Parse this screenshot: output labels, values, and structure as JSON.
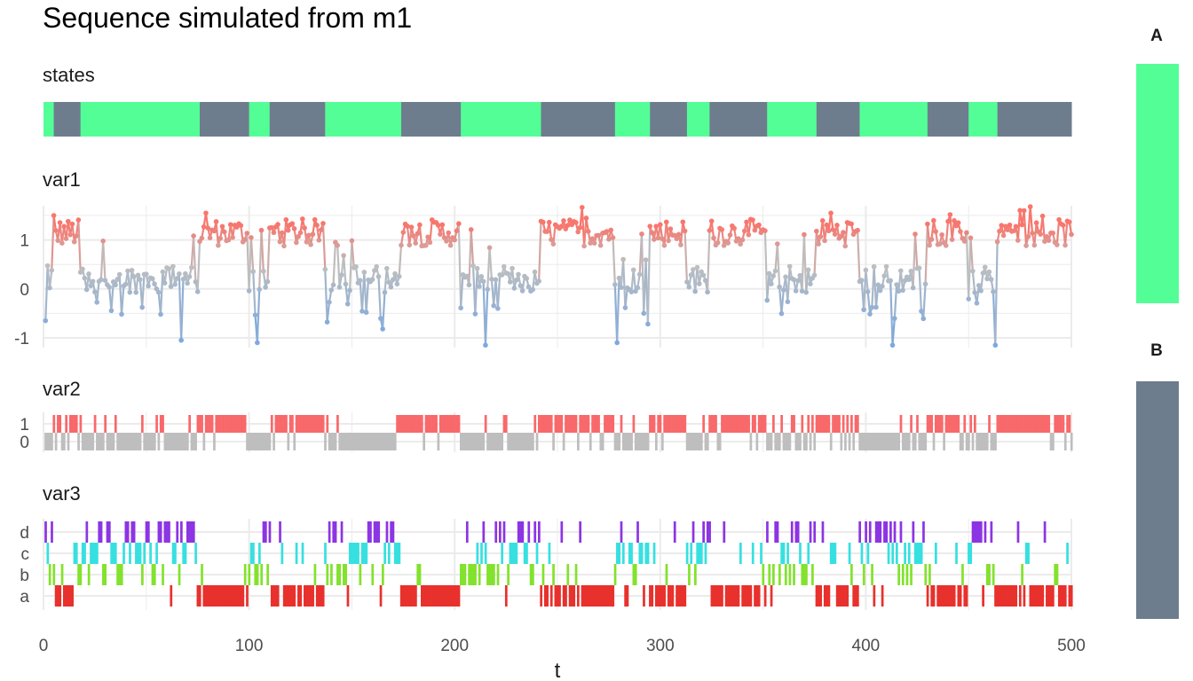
{
  "title": "Sequence simulated from m1",
  "xlabel": "t",
  "colors": {
    "A": "#54FE97",
    "B": "#6E7D8D",
    "var1_high": "#F8766D",
    "var1_low": "#7DA9DE",
    "var1_mid": "#BFBFBF",
    "var2_1": "#F8696B",
    "var2_0": "#BEBEBE",
    "var3_a": "#E8312D",
    "var3_b": "#83E22D",
    "var3_c": "#37E0E0",
    "var3_d": "#8C35E3",
    "grid": "#EBEBEB"
  },
  "chart_data": {
    "type": "multi-panel sequence",
    "xlim": [
      0,
      500
    ],
    "xticks": [
      0,
      100,
      200,
      300,
      400,
      500
    ],
    "legend": {
      "position": "right",
      "entries": [
        "A",
        "B"
      ]
    },
    "states": {
      "label": "states",
      "segments": [
        {
          "state": "A",
          "start": 0,
          "end": 5
        },
        {
          "state": "B",
          "start": 5,
          "end": 18
        },
        {
          "state": "A",
          "start": 18,
          "end": 76
        },
        {
          "state": "B",
          "start": 76,
          "end": 100
        },
        {
          "state": "A",
          "start": 100,
          "end": 110
        },
        {
          "state": "B",
          "start": 110,
          "end": 137
        },
        {
          "state": "A",
          "start": 137,
          "end": 174
        },
        {
          "state": "B",
          "start": 174,
          "end": 203
        },
        {
          "state": "A",
          "start": 203,
          "end": 242
        },
        {
          "state": "B",
          "start": 242,
          "end": 278
        },
        {
          "state": "A",
          "start": 278,
          "end": 295
        },
        {
          "state": "B",
          "start": 295,
          "end": 313
        },
        {
          "state": "A",
          "start": 313,
          "end": 324
        },
        {
          "state": "B",
          "start": 324,
          "end": 352
        },
        {
          "state": "A",
          "start": 352,
          "end": 376
        },
        {
          "state": "B",
          "start": 376,
          "end": 397
        },
        {
          "state": "A",
          "start": 397,
          "end": 430
        },
        {
          "state": "B",
          "start": 430,
          "end": 450
        },
        {
          "state": "A",
          "start": 450,
          "end": 464
        },
        {
          "state": "B",
          "start": 464,
          "end": 500
        }
      ]
    },
    "var1": {
      "label": "var1",
      "type": "line",
      "ylim": [
        -1.2,
        1.7
      ],
      "yticks": [
        -1,
        0,
        1
      ],
      "ytick_labels": [
        "-1",
        "0",
        "1"
      ],
      "state_means": {
        "A": 0.2,
        "B": 1.15
      },
      "notable_points": [
        {
          "t": 1,
          "value": -0.65
        },
        {
          "t": 5,
          "value": 1.5
        },
        {
          "t": 67,
          "value": -1.05
        },
        {
          "t": 79,
          "value": 1.55
        },
        {
          "t": 104,
          "value": -1.1
        },
        {
          "t": 215,
          "value": -1.15
        },
        {
          "t": 279,
          "value": -1.1
        },
        {
          "t": 383,
          "value": 1.55
        },
        {
          "t": 413,
          "value": -1.15
        },
        {
          "t": 463,
          "value": -1.15
        },
        {
          "t": 477,
          "value": 1.6
        }
      ]
    },
    "var2": {
      "label": "var2",
      "type": "binary",
      "levels": [
        "0",
        "1"
      ],
      "state_prob_1": {
        "A": 0.12,
        "B": 0.85
      }
    },
    "var3": {
      "label": "var3",
      "type": "categorical",
      "levels": [
        "a",
        "b",
        "c",
        "d"
      ],
      "state_probs": {
        "A": {
          "a": 0.05,
          "b": 0.25,
          "c": 0.4,
          "d": 0.3
        },
        "B": {
          "a": 0.8,
          "b": 0.08,
          "c": 0.08,
          "d": 0.04
        }
      }
    }
  }
}
